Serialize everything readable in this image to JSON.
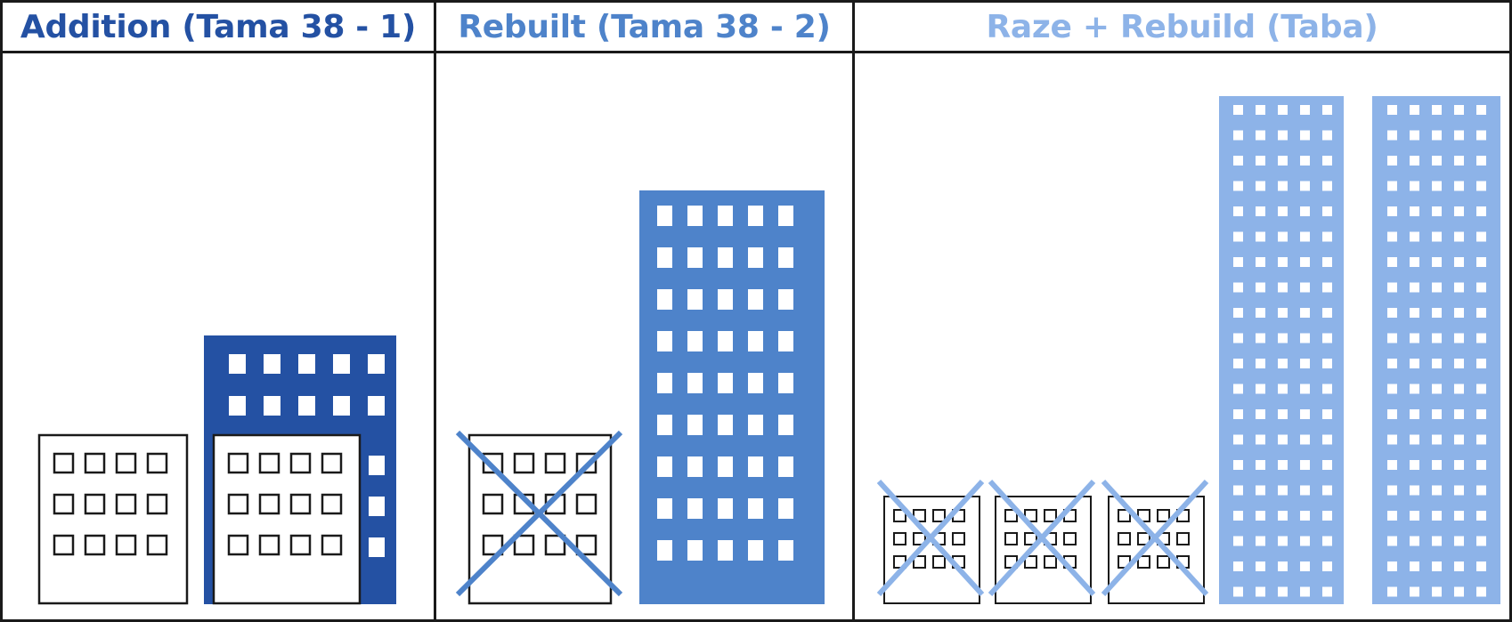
{
  "panels": [
    {
      "title": "Addition (Tama 38 - 1)",
      "color": "#2451a3"
    },
    {
      "title": "Rebuilt (Tama 38 - 2)",
      "color": "#4e83ca"
    },
    {
      "title": "Raze + Rebuild (Taba)",
      "color": "#8db3e8"
    }
  ],
  "colors": {
    "border": "#1a1a1a",
    "outline_building": "#1a1a1a",
    "window_fill": "#ffffff"
  },
  "buildings": {
    "existing_small": "outline-building-icon",
    "addition_block": "filled-building-icon",
    "demolish_mark": "cross-icon",
    "new_tower": "tower-icon"
  }
}
